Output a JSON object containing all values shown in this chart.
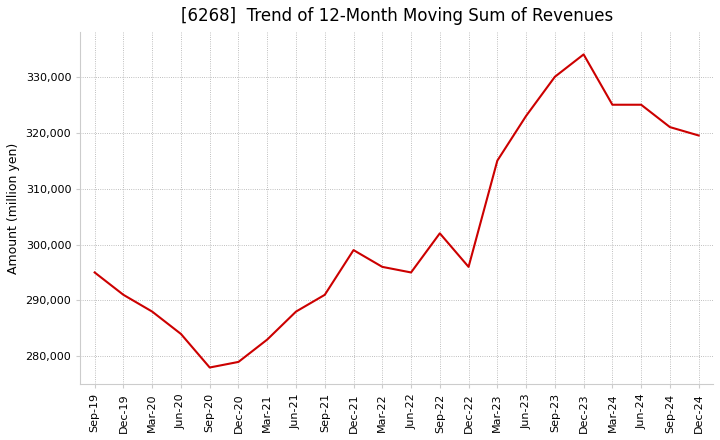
{
  "title": "[6268]  Trend of 12-Month Moving Sum of Revenues",
  "ylabel": "Amount (million yen)",
  "line_color": "#cc0000",
  "background_color": "#ffffff",
  "plot_bg_color": "#ffffff",
  "grid_color": "#aaaaaa",
  "x_labels": [
    "Sep-19",
    "Dec-19",
    "Mar-20",
    "Jun-20",
    "Sep-20",
    "Dec-20",
    "Mar-21",
    "Jun-21",
    "Sep-21",
    "Dec-21",
    "Mar-22",
    "Jun-22",
    "Sep-22",
    "Dec-22",
    "Mar-23",
    "Jun-23",
    "Sep-23",
    "Dec-23",
    "Mar-24",
    "Jun-24",
    "Sep-24",
    "Dec-24"
  ],
  "values": [
    295000,
    291000,
    288000,
    284000,
    278000,
    279000,
    283000,
    288000,
    291000,
    299000,
    296000,
    295000,
    302000,
    296000,
    315000,
    323000,
    330000,
    334000,
    325000,
    325000,
    321000,
    319500
  ],
  "ylim": [
    275000,
    338000
  ],
  "yticks": [
    280000,
    290000,
    300000,
    310000,
    320000,
    330000
  ],
  "title_fontsize": 12,
  "label_fontsize": 9,
  "tick_fontsize": 8
}
